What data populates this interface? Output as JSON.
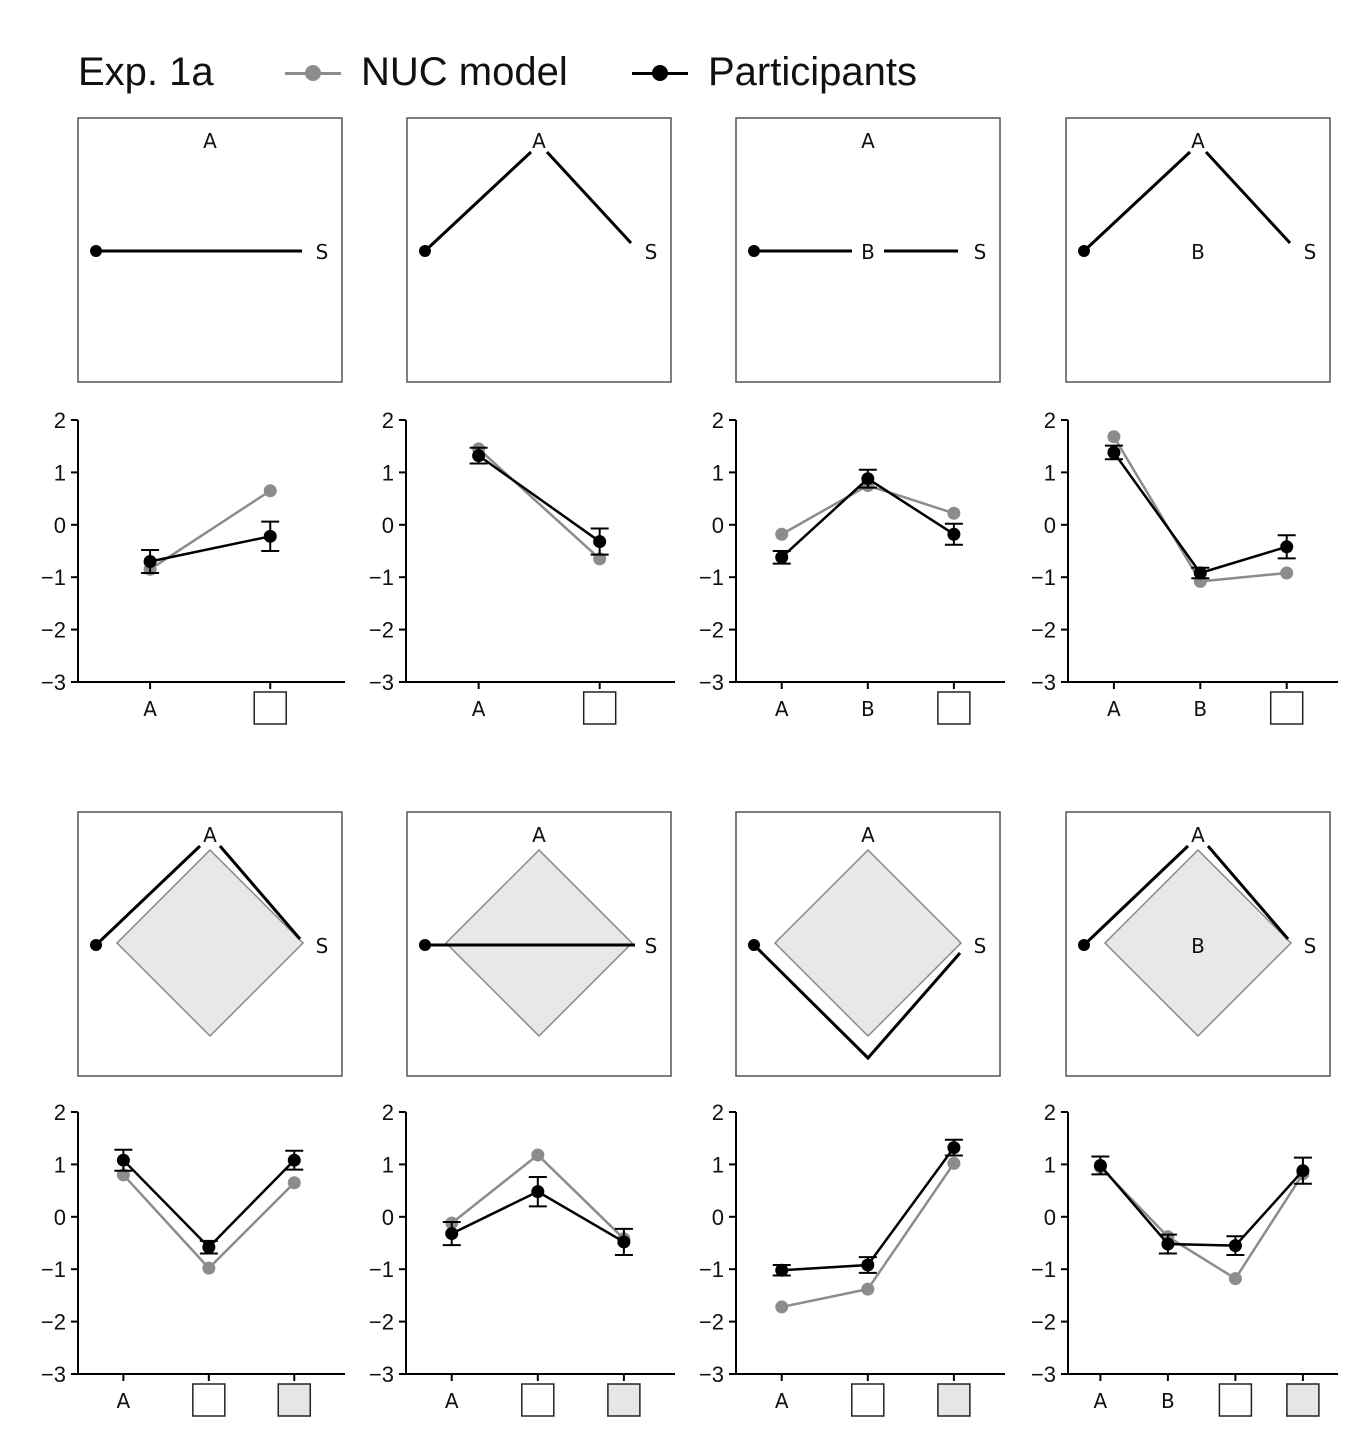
{
  "legend": {
    "experiment_label": "Exp. 1a",
    "model_label": "NUC model",
    "participants_label": "Participants",
    "model_color": "#8c8c8c",
    "participants_color": "#000000"
  },
  "panel_categories": [
    [
      "A",
      "empty-square"
    ],
    [
      "A",
      "empty-square"
    ],
    [
      "A",
      "B",
      "empty-square"
    ],
    [
      "A",
      "B",
      "empty-square"
    ],
    [
      "A",
      "empty-square",
      "gray-square"
    ],
    [
      "A",
      "empty-square",
      "gray-square"
    ],
    [
      "A",
      "empty-square",
      "gray-square"
    ],
    [
      "A",
      "B",
      "empty-square",
      "gray-square"
    ]
  ],
  "diagrams": [
    {
      "top_label": "A",
      "goal_label": "S",
      "b_label": ""
    },
    {
      "top_label": "A",
      "goal_label": "S",
      "b_label": ""
    },
    {
      "top_label": "A",
      "goal_label": "S",
      "b_label": "B"
    },
    {
      "top_label": "A",
      "goal_label": "S",
      "b_label": "B"
    },
    {
      "top_label": "A",
      "goal_label": "S",
      "b_label": ""
    },
    {
      "top_label": "A",
      "goal_label": "S",
      "b_label": ""
    },
    {
      "top_label": "A",
      "goal_label": "S",
      "b_label": ""
    },
    {
      "top_label": "A",
      "goal_label": "S",
      "b_label": "B"
    }
  ],
  "chart_data": [
    {
      "type": "line",
      "categories": [
        "A",
        "□"
      ],
      "ylim": [
        -3,
        2
      ],
      "yticks": [
        "2",
        "1",
        "0",
        "−1",
        "−2",
        "−3"
      ],
      "series": [
        {
          "name": "NUC model",
          "values": [
            -0.85,
            0.65
          ]
        },
        {
          "name": "Participants",
          "values": [
            -0.7,
            -0.22
          ],
          "errors": [
            0.22,
            0.28
          ]
        }
      ]
    },
    {
      "type": "line",
      "categories": [
        "A",
        "□"
      ],
      "ylim": [
        -3,
        2
      ],
      "yticks": [
        "2",
        "1",
        "0",
        "−1",
        "−2",
        "−3"
      ],
      "series": [
        {
          "name": "NUC model",
          "values": [
            1.45,
            -0.65
          ]
        },
        {
          "name": "Participants",
          "values": [
            1.32,
            -0.32
          ],
          "errors": [
            0.15,
            0.25
          ]
        }
      ]
    },
    {
      "type": "line",
      "categories": [
        "A",
        "B",
        "□"
      ],
      "ylim": [
        -3,
        2
      ],
      "yticks": [
        "2",
        "1",
        "0",
        "−1",
        "−2",
        "−3"
      ],
      "series": [
        {
          "name": "NUC model",
          "values": [
            -0.18,
            0.75,
            0.22
          ]
        },
        {
          "name": "Participants",
          "values": [
            -0.62,
            0.88,
            -0.18
          ],
          "errors": [
            0.12,
            0.17,
            0.2
          ]
        }
      ]
    },
    {
      "type": "line",
      "categories": [
        "A",
        "B",
        "□"
      ],
      "ylim": [
        -3,
        2
      ],
      "yticks": [
        "2",
        "1",
        "0",
        "−1",
        "−2",
        "−3"
      ],
      "series": [
        {
          "name": "NUC model",
          "values": [
            1.68,
            -1.08,
            -0.92
          ]
        },
        {
          "name": "Participants",
          "values": [
            1.38,
            -0.92,
            -0.42
          ],
          "errors": [
            0.13,
            0.1,
            0.22
          ]
        }
      ]
    },
    {
      "type": "line",
      "categories": [
        "A",
        "□",
        "□"
      ],
      "ylim": [
        -3,
        2
      ],
      "yticks": [
        "2",
        "1",
        "0",
        "−1",
        "−2",
        "−3"
      ],
      "series": [
        {
          "name": "NUC model",
          "values": [
            0.8,
            -0.98,
            0.65
          ]
        },
        {
          "name": "Participants",
          "values": [
            1.08,
            -0.58,
            1.08
          ],
          "errors": [
            0.2,
            0.12,
            0.18
          ]
        }
      ]
    },
    {
      "type": "line",
      "categories": [
        "A",
        "□",
        "□"
      ],
      "ylim": [
        -3,
        2
      ],
      "yticks": [
        "2",
        "1",
        "0",
        "−1",
        "−2",
        "−3"
      ],
      "series": [
        {
          "name": "NUC model",
          "values": [
            -0.12,
            1.18,
            -0.42
          ]
        },
        {
          "name": "Participants",
          "values": [
            -0.32,
            0.48,
            -0.48
          ],
          "errors": [
            0.22,
            0.28,
            0.25
          ]
        }
      ]
    },
    {
      "type": "line",
      "categories": [
        "A",
        "□",
        "□"
      ],
      "ylim": [
        -3,
        2
      ],
      "yticks": [
        "2",
        "1",
        "0",
        "−1",
        "−2",
        "−3"
      ],
      "series": [
        {
          "name": "NUC model",
          "values": [
            -1.72,
            -1.38,
            1.02
          ]
        },
        {
          "name": "Participants",
          "values": [
            -1.02,
            -0.92,
            1.32
          ],
          "errors": [
            0.1,
            0.15,
            0.15
          ]
        }
      ]
    },
    {
      "type": "line",
      "categories": [
        "A",
        "B",
        "□",
        "□"
      ],
      "ylim": [
        -3,
        2
      ],
      "yticks": [
        "2",
        "1",
        "0",
        "−1",
        "−2",
        "−3"
      ],
      "series": [
        {
          "name": "NUC model",
          "values": [
            0.95,
            -0.38,
            -1.18,
            0.82
          ]
        },
        {
          "name": "Participants",
          "values": [
            0.98,
            -0.52,
            -0.55,
            0.88
          ],
          "errors": [
            0.17,
            0.18,
            0.18,
            0.25
          ]
        }
      ]
    }
  ]
}
